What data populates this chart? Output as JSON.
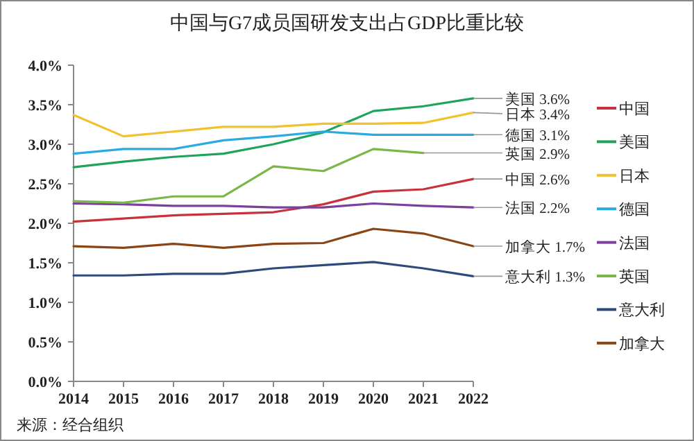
{
  "chart_data": {
    "type": "line",
    "title": "中国与G7成员国研发支出占GDP比重比较",
    "x": [
      "2014",
      "2015",
      "2016",
      "2017",
      "2018",
      "2019",
      "2020",
      "2021",
      "2022"
    ],
    "xlim": [
      "2014",
      "2022"
    ],
    "xticks": [
      "2014",
      "2015",
      "2016",
      "2017",
      "2018",
      "2019",
      "2020",
      "2021",
      "2022"
    ],
    "ylim": [
      0,
      4
    ],
    "yticks": [
      {
        "value": 0,
        "label": "0.0%"
      },
      {
        "value": 0.5,
        "label": "0.5%"
      },
      {
        "value": 1,
        "label": "1.0%"
      },
      {
        "value": 1.5,
        "label": "1.5%"
      },
      {
        "value": 2,
        "label": "2.0%"
      },
      {
        "value": 2.5,
        "label": "2.5%"
      },
      {
        "value": 3,
        "label": "3.0%"
      },
      {
        "value": 3.5,
        "label": "3.5%"
      },
      {
        "value": 4,
        "label": "4.0%"
      }
    ],
    "grid": false,
    "legend": "right",
    "marker": "none",
    "line_style": "solid",
    "series": [
      {
        "name": "中国",
        "color": "#c8323c",
        "values": [
          2.02,
          2.06,
          2.1,
          2.12,
          2.14,
          2.24,
          2.4,
          2.43,
          2.56
        ]
      },
      {
        "name": "美国",
        "color": "#1fa35b",
        "values": [
          2.71,
          2.78,
          2.84,
          2.88,
          3.0,
          3.15,
          3.42,
          3.48,
          3.58
        ]
      },
      {
        "name": "日本",
        "color": "#f2c12e",
        "values": [
          3.37,
          3.1,
          3.16,
          3.22,
          3.22,
          3.26,
          3.26,
          3.27,
          3.4
        ]
      },
      {
        "name": "德国",
        "color": "#29abe2",
        "values": [
          2.88,
          2.94,
          2.94,
          3.05,
          3.1,
          3.16,
          3.12,
          3.12,
          3.12
        ]
      },
      {
        "name": "法国",
        "color": "#7b3f9e",
        "values": [
          2.25,
          2.24,
          2.22,
          2.22,
          2.2,
          2.2,
          2.25,
          2.22,
          2.2
        ]
      },
      {
        "name": "英国",
        "color": "#7ab648",
        "values": [
          2.28,
          2.26,
          2.34,
          2.34,
          2.72,
          2.66,
          2.94,
          2.89,
          null
        ]
      },
      {
        "name": "意大利",
        "color": "#2e4a7d",
        "values": [
          1.34,
          1.34,
          1.36,
          1.36,
          1.43,
          1.47,
          1.51,
          1.43,
          1.33
        ]
      },
      {
        "name": "加拿大",
        "color": "#8b4513",
        "values": [
          1.71,
          1.69,
          1.74,
          1.69,
          1.74,
          1.75,
          1.93,
          1.87,
          1.71
        ]
      }
    ],
    "annotations": [
      {
        "text": "美国 3.6%",
        "x": "2022",
        "y": 3.58
      },
      {
        "text": "日本 3.4%",
        "x": "2022",
        "y": 3.4
      },
      {
        "text": "德国 3.1%",
        "x": "2022",
        "y": 3.12
      },
      {
        "text": "英国 2.9%",
        "x": "2021",
        "y": 2.89
      },
      {
        "text": "中国 2.6%",
        "x": "2022",
        "y": 2.56
      },
      {
        "text": "法国 2.2%",
        "x": "2022",
        "y": 2.2
      },
      {
        "text": "加拿大 1.7%",
        "x": "2022",
        "y": 1.71
      },
      {
        "text": "意大利 1.3%",
        "x": "2022",
        "y": 1.33
      },
      "来源：经合组织"
    ]
  }
}
